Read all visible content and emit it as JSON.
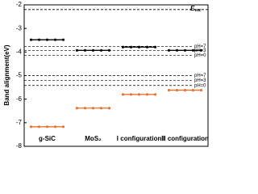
{
  "chart_data": {
    "type": "band-alignment",
    "ylabel": "Band alignment(eV)",
    "categories": [
      "g-SiC",
      "MoS₂",
      "Ⅰ configuration",
      "Ⅲ configuration"
    ],
    "series": [
      {
        "color": "#000000",
        "values": [
          -3.48,
          -3.93,
          -3.79,
          -3.93
        ]
      },
      {
        "color": "#e8732e",
        "values": [
          -7.17,
          -6.38,
          -5.8,
          -5.62
        ]
      }
    ],
    "vacuum": {
      "value": -2.2,
      "label": "E",
      "subscript": "vac"
    },
    "levels": [
      {
        "value": -3.76,
        "label": "pH=7"
      },
      {
        "value": -3.93,
        "label": "pH=3"
      },
      {
        "value": -4.14,
        "label": "pH=0"
      },
      {
        "value": -5.0,
        "label": "pH=7"
      },
      {
        "value": -5.2,
        "label": "pH=3"
      },
      {
        "value": -5.42,
        "label": "pH=0"
      }
    ],
    "ylim": [
      -8,
      -2
    ],
    "yticks": [
      -2,
      -3,
      -4,
      -5,
      -6,
      -7,
      -8
    ]
  }
}
